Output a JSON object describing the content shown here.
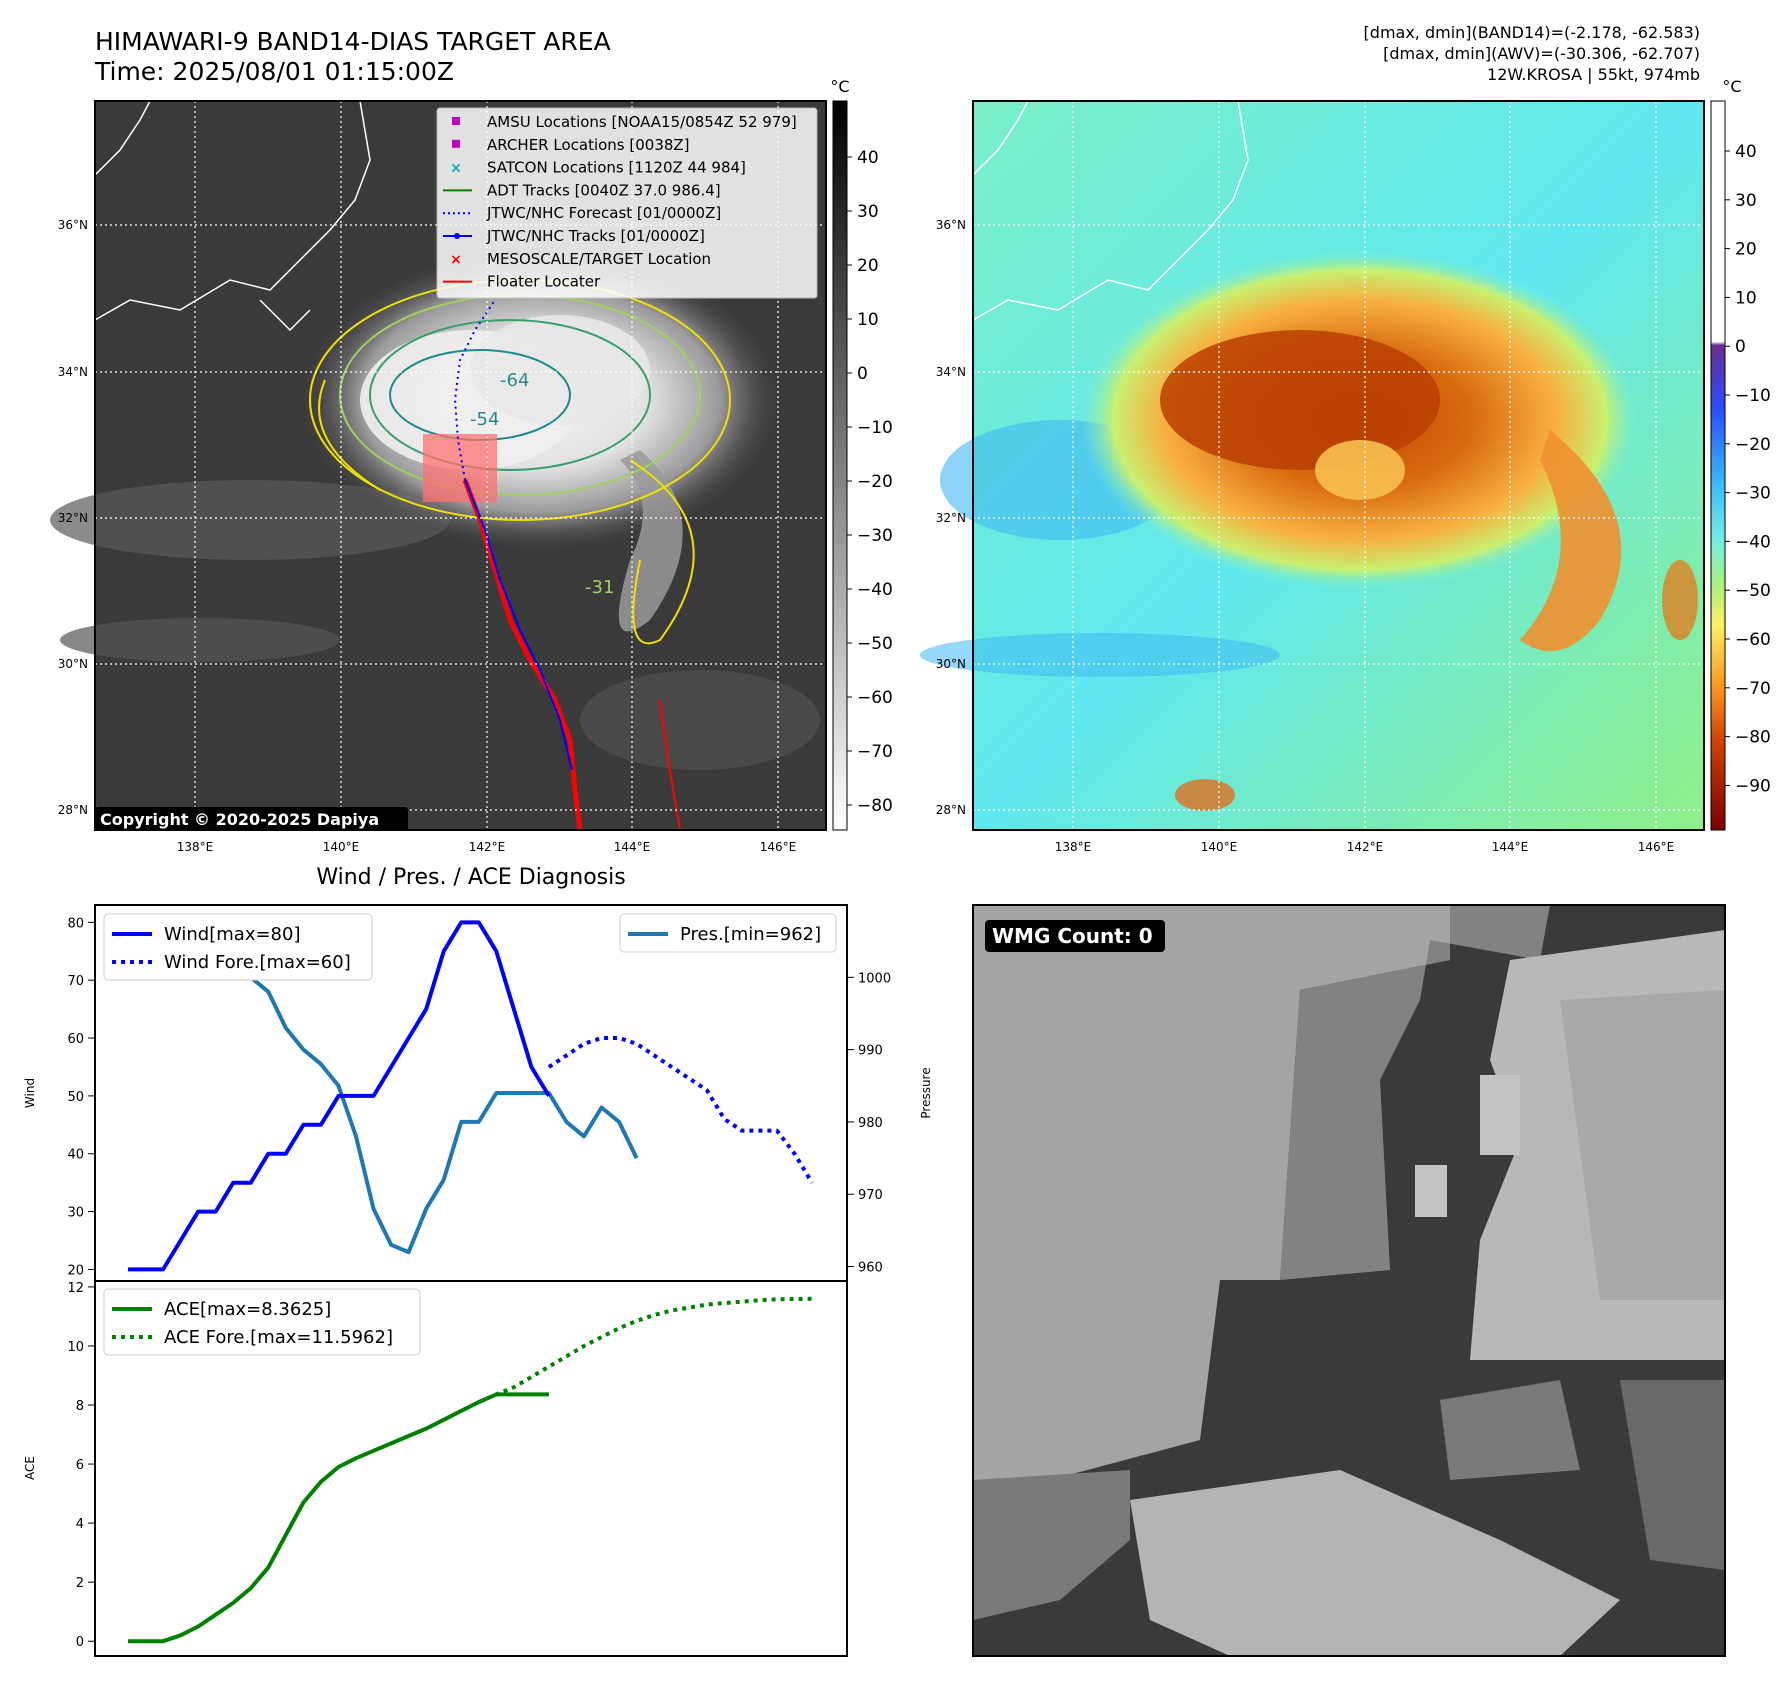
{
  "header": {
    "title": "HIMAWARI-9 BAND14-DIAS TARGET AREA",
    "time": "Time: 2025/08/01 01:15:00Z",
    "info": [
      "[dmax, dmin](BAND14)=(-2.178, -62.583)",
      "[dmax, dmin](AWV)=(-30.306, -62.707)",
      "12W.KROSA | 55kt, 974mb"
    ]
  },
  "maps": {
    "lat_ticks": [
      "28°N",
      "30°N",
      "32°N",
      "34°N",
      "36°N"
    ],
    "lon_ticks": [
      "138°E",
      "140°E",
      "142°E",
      "144°E",
      "146°E"
    ],
    "unit": "°C",
    "ir_colorbar_ticks": [
      "40",
      "30",
      "20",
      "10",
      "0",
      "−10",
      "−20",
      "−30",
      "−40",
      "−50",
      "−60",
      "−70",
      "−80"
    ],
    "wv_colorbar_ticks": [
      "40",
      "30",
      "20",
      "10",
      "0",
      "−10",
      "−20",
      "−30",
      "−40",
      "−50",
      "−60",
      "−70",
      "−80",
      "−90"
    ],
    "copyright": "Copyright © 2020-2025 Dapiya",
    "contour_labels": [
      "-64",
      "-54",
      "-31"
    ],
    "legend": [
      {
        "label": "AMSU Locations [NOAA15/0854Z 52 979]",
        "color": "#c000c0",
        "kind": "square"
      },
      {
        "label": "ARCHER Locations [0038Z]",
        "color": "#c000c0",
        "kind": "square"
      },
      {
        "label": "SATCON Locations [1120Z 44 984]",
        "color": "#00b0b0",
        "kind": "x"
      },
      {
        "label": "ADT Tracks [0040Z 37.0 986.4]",
        "color": "#008000",
        "kind": "line"
      },
      {
        "label": "JTWC/NHC Forecast [01/0000Z]",
        "color": "#0000ff",
        "kind": "dotted"
      },
      {
        "label": "JTWC/NHC Tracks [01/0000Z]",
        "color": "#0000ff",
        "kind": "linedot"
      },
      {
        "label": "MESOSCALE/TARGET Location",
        "color": "#ff0000",
        "kind": "redx"
      },
      {
        "label": "Floater Locater",
        "color": "#ff0000",
        "kind": "line"
      }
    ]
  },
  "wmg": {
    "label": "WMG Count: 0"
  },
  "chart_data": [
    {
      "type": "line",
      "title": "Wind / Pres. / ACE Diagnosis",
      "ylabel": "Wind",
      "ylim": [
        18,
        83
      ],
      "yticks": [
        20,
        30,
        40,
        50,
        60,
        70,
        80
      ],
      "series": [
        {
          "name": "Wind[max=80]",
          "style": "solid",
          "color": "#0000ff",
          "x": [
            0,
            1,
            2,
            3,
            4,
            5,
            6,
            7,
            8,
            9,
            10,
            11,
            12,
            13,
            14,
            15,
            16,
            17,
            18,
            19,
            20,
            21,
            22,
            23,
            24
          ],
          "values": [
            20,
            20,
            20,
            25,
            30,
            30,
            35,
            35,
            40,
            40,
            45,
            45,
            50,
            50,
            50,
            55,
            60,
            65,
            75,
            80,
            80,
            75,
            65,
            55,
            50
          ]
        },
        {
          "name": "Wind Fore.[max=60]",
          "style": "dotted",
          "color": "#0000ff",
          "x": [
            24,
            25,
            26,
            27,
            28,
            29,
            30,
            31,
            32,
            33,
            34,
            35,
            36,
            37,
            38,
            39
          ],
          "values": [
            55,
            57,
            59,
            60,
            60,
            59,
            57,
            55,
            53,
            51,
            46,
            44,
            44,
            44,
            40,
            35
          ]
        }
      ]
    },
    {
      "type": "line",
      "ylabel": "Pressure",
      "ylim": [
        958,
        1010
      ],
      "yticks": [
        960,
        970,
        980,
        990,
        1000
      ],
      "series": [
        {
          "name": "Pres.[min=962]",
          "style": "solid",
          "color": "#1f77b4",
          "x": [
            0,
            1,
            2,
            3,
            4,
            5,
            6,
            7,
            8,
            9,
            10,
            11,
            12,
            13,
            14,
            15,
            16,
            17,
            18,
            19,
            20,
            21,
            22,
            23,
            24,
            25,
            26,
            27,
            28,
            29
          ],
          "values": [
            1006,
            1006,
            1006,
            1004,
            1004,
            1002,
            1002,
            1000,
            998,
            993,
            990,
            988,
            985,
            978,
            968,
            963,
            962,
            968,
            972,
            980,
            980,
            984,
            984,
            984,
            984,
            980,
            978,
            982,
            980,
            975
          ]
        }
      ]
    },
    {
      "type": "line",
      "ylabel": "ACE",
      "ylim": [
        -0.5,
        12.2
      ],
      "yticks": [
        0,
        2,
        4,
        6,
        8,
        10,
        12
      ],
      "series": [
        {
          "name": "ACE[max=8.3625]",
          "style": "solid",
          "color": "#008000",
          "x": [
            0,
            1,
            2,
            3,
            4,
            5,
            6,
            7,
            8,
            9,
            10,
            11,
            12,
            13,
            14,
            15,
            16,
            17,
            18,
            19,
            20,
            21,
            22,
            23,
            24
          ],
          "values": [
            0,
            0,
            0,
            0.2,
            0.5,
            0.9,
            1.3,
            1.8,
            2.5,
            3.6,
            4.7,
            5.4,
            5.9,
            6.2,
            6.45,
            6.7,
            6.95,
            7.2,
            7.5,
            7.8,
            8.1,
            8.36,
            8.36,
            8.36,
            8.36
          ]
        },
        {
          "name": "ACE Fore.[max=11.5962]",
          "style": "dotted",
          "color": "#008000",
          "x": [
            20,
            21,
            22,
            23,
            24,
            25,
            26,
            27,
            28,
            29,
            30,
            31,
            32,
            33,
            34,
            35,
            36,
            37,
            38,
            39
          ],
          "values": [
            8.1,
            8.36,
            8.6,
            8.95,
            9.3,
            9.65,
            10.0,
            10.3,
            10.6,
            10.85,
            11.05,
            11.2,
            11.3,
            11.4,
            11.45,
            11.5,
            11.55,
            11.58,
            11.59,
            11.5962
          ]
        }
      ]
    }
  ]
}
